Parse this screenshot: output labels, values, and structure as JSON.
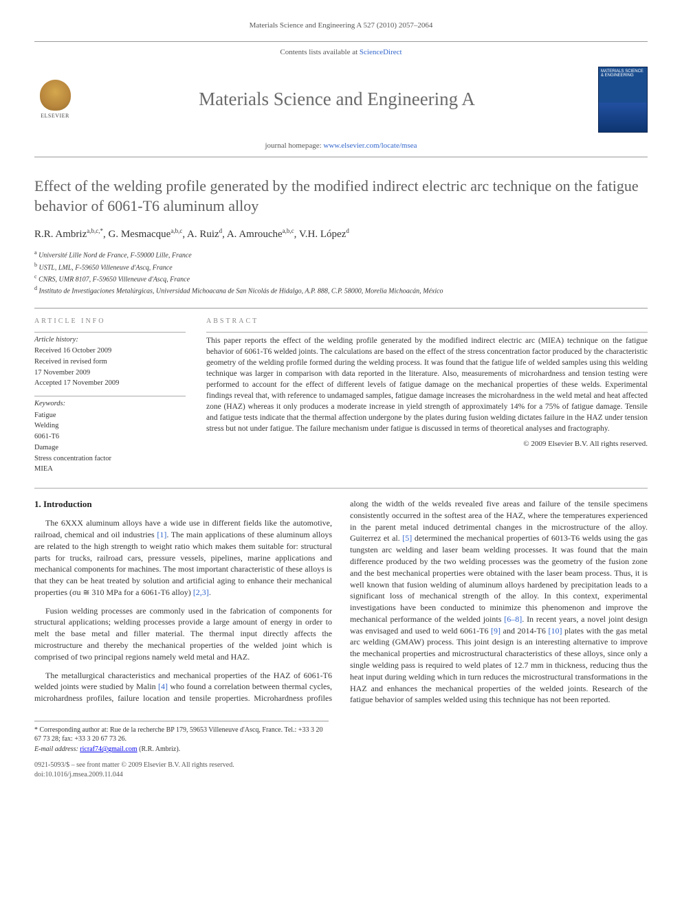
{
  "header": {
    "citation": "Materials Science and Engineering A 527 (2010) 2057–2064",
    "contents_prefix": "Contents lists available at ",
    "contents_link": "ScienceDirect",
    "journal_title": "Materials Science and Engineering A",
    "homepage_prefix": "journal homepage: ",
    "homepage_link": "www.elsevier.com/locate/msea",
    "elsevier_text": "ELSEVIER",
    "cover_text": "MATERIALS SCIENCE & ENGINEERING"
  },
  "article": {
    "title": "Effect of the welding profile generated by the modified indirect electric arc technique on the fatigue behavior of 6061-T6 aluminum alloy",
    "authors_html": "R.R. Ambriz<sup>a,b,c,*</sup>, G. Mesmacque<sup>a,b,c</sup>, A. Ruiz<sup>d</sup>, A. Amrouche<sup>a,b,c</sup>, V.H. López<sup>d</sup>",
    "affiliations": [
      {
        "sup": "a",
        "text": "Université Lille Nord de France, F-59000 Lille, France"
      },
      {
        "sup": "b",
        "text": "USTL, LML, F-59650 Villeneuve d'Ascq, France"
      },
      {
        "sup": "c",
        "text": "CNRS, UMR 8107, F-59650 Villeneuve d'Ascq, France"
      },
      {
        "sup": "d",
        "text": "Instituto de Investigaciones Metalúrgicas, Universidad Michoacana de San Nicolás de Hidalgo, A.P. 888, C.P. 58000, Morelia Michoacán, México"
      }
    ]
  },
  "info": {
    "header": "ARTICLE INFO",
    "history_label": "Article history:",
    "history": [
      "Received 16 October 2009",
      "Received in revised form",
      "17 November 2009",
      "Accepted 17 November 2009"
    ],
    "keywords_label": "Keywords:",
    "keywords": [
      "Fatigue",
      "Welding",
      "6061-T6",
      "Damage",
      "Stress concentration factor",
      "MIEA"
    ]
  },
  "abstract": {
    "header": "ABSTRACT",
    "text": "This paper reports the effect of the welding profile generated by the modified indirect electric arc (MIEA) technique on the fatigue behavior of 6061-T6 welded joints. The calculations are based on the effect of the stress concentration factor produced by the characteristic geometry of the welding profile formed during the welding process. It was found that the fatigue life of welded samples using this welding technique was larger in comparison with data reported in the literature. Also, measurements of microhardness and tension testing were performed to account for the effect of different levels of fatigue damage on the mechanical properties of these welds. Experimental findings reveal that, with reference to undamaged samples, fatigue damage increases the microhardness in the weld metal and heat affected zone (HAZ) whereas it only produces a moderate increase in yield strength of approximately 14% for a 75% of fatigue damage. Tensile and fatigue tests indicate that the thermal affection undergone by the plates during fusion welding dictates failure in the HAZ under tension stress but not under fatigue. The failure mechanism under fatigue is discussed in terms of theoretical analyses and fractography.",
    "copyright": "© 2009 Elsevier B.V. All rights reserved."
  },
  "body": {
    "section_number": "1.",
    "section_title": "Introduction",
    "p1_a": "The 6XXX aluminum alloys have a wide use in different fields like the automotive, railroad, chemical and oil industries ",
    "p1_ref1": "[1]",
    "p1_b": ". The main applications of these aluminum alloys are related to the high strength to weight ratio which makes them suitable for: structural parts for trucks, railroad cars, pressure vessels, pipelines, marine applications and mechanical components for machines. The most important characteristic of these alloys is that they can be heat treated by solution and artificial aging to enhance their mechanical properties (σu ≅ 310 MPa for a 6061-T6 alloy) ",
    "p1_ref2": "[2,3]",
    "p1_c": ".",
    "p2": "Fusion welding processes are commonly used in the fabrication of components for structural applications; welding processes provide a large amount of energy in order to melt the base metal and filler material. The thermal input directly affects the microstructure and thereby the mechanical properties of the welded joint which is comprised of two principal regions namely weld metal and HAZ.",
    "p3_a": "The metallurgical characteristics and mechanical properties of the HAZ of 6061-T6 welded joints were studied by Malin ",
    "p3_ref4": "[4]",
    "p3_b": " who found a correlation between thermal cycles, microhardness pro",
    "p3_c": "files, failure location and tensile properties. Microhardness profiles along the width of the welds revealed five areas and failure of the tensile specimens consistently occurred in the softest area of the HAZ, where the temperatures experienced in the parent metal induced detrimental changes in the microstructure of the alloy. Guiterrez et al. ",
    "p3_ref5": "[5]",
    "p3_d": " determined the mechanical properties of 6013-T6 welds using the gas tungsten arc welding and laser beam welding processes. It was found that the main difference produced by the two welding processes was the geometry of the fusion zone and the best mechanical properties were obtained with the laser beam process. Thus, it is well known that fusion welding of aluminum alloys hardened by precipitation leads to a significant loss of mechanical strength of the alloy. In this context, experimental investigations have been conducted to minimize this phenomenon and improve the mechanical performance of the welded joints ",
    "p3_ref68": "[6–8]",
    "p3_e": ". In recent years, a novel joint design was envisaged and used to weld 6061-T6 ",
    "p3_ref9": "[9]",
    "p3_f": " and 2014-T6 ",
    "p3_ref10": "[10]",
    "p3_g": " plates with the gas metal arc welding (GMAW) process. This joint design is an interesting alternative to improve the mechanical properties and microstructural characteristics of these alloys, since only a single welding pass is required to weld plates of 12.7 mm in thickness, reducing thus the heat input during welding which in turn reduces the microstructural transformations in the HAZ and enhances the mechanical properties of the welded joints. Research of the fatigue behavior of samples welded using this technique has not been reported."
  },
  "footnotes": {
    "corresponding": "* Corresponding author at: Rue de la recherche BP 179, 59653 Villeneuve d'Ascq, France. Tel.: +33 3 20 67 73 28; fax: +33 3 20 67 73 26.",
    "email_label": "E-mail address: ",
    "email": "ricraf74@gmail.com",
    "email_suffix": " (R.R. Ambriz)."
  },
  "footer": {
    "issn": "0921-5093/$ – see front matter © 2009 Elsevier B.V. All rights reserved.",
    "doi": "doi:10.1016/j.msea.2009.11.044"
  },
  "colors": {
    "link": "#3366cc",
    "text": "#333333",
    "gray_title": "#6a6a6a",
    "rule": "#999999"
  }
}
